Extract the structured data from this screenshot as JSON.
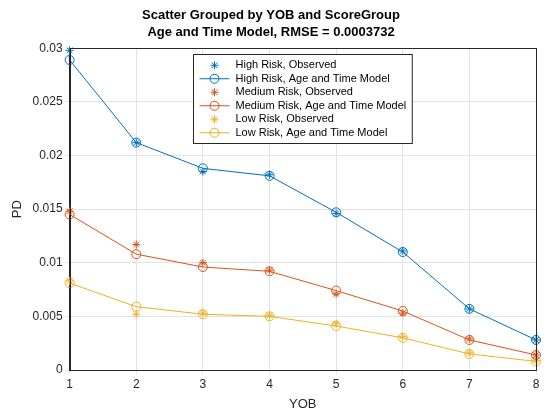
{
  "chart_data": {
    "type": "line",
    "title": "Scatter Grouped by YOB and ScoreGroup",
    "subtitle": "Age and Time Model, RMSE = 0.0003732",
    "x_label": "YOB",
    "y_label": "PD",
    "x": [
      1,
      2,
      3,
      4,
      5,
      6,
      7,
      8
    ],
    "xlim": [
      1,
      8
    ],
    "xticks": [
      1,
      2,
      3,
      4,
      5,
      6,
      7,
      8
    ],
    "ylim": [
      0,
      0.03
    ],
    "yticks": [
      0,
      0.005,
      0.01,
      0.015,
      0.02,
      0.025,
      0.03
    ],
    "grid": true,
    "legend": "top",
    "series": [
      {
        "name": "High Risk, Observed",
        "color": "#0072bd",
        "marker": "star",
        "line_style": "none",
        "values": [
          0.0298,
          0.0212,
          0.0185,
          0.0182,
          0.0146,
          0.0111,
          0.0057,
          0.0028
        ]
      },
      {
        "name": "High Risk, Age and Time Model",
        "color": "#0072bd",
        "marker": "circle",
        "line_style": "solid",
        "values": [
          0.0289,
          0.0212,
          0.0188,
          0.0181,
          0.0147,
          0.011,
          0.0057,
          0.0028
        ]
      },
      {
        "name": "Medium Risk, Observed",
        "color": "#d95319",
        "marker": "star",
        "line_style": "none",
        "values": [
          0.0148,
          0.0117,
          0.01,
          0.0093,
          0.0071,
          0.0053,
          0.0029,
          0.0014
        ]
      },
      {
        "name": "Medium Risk, Age and Time Model",
        "color": "#d95319",
        "marker": "circle",
        "line_style": "solid",
        "values": [
          0.0145,
          0.0108,
          0.0096,
          0.0092,
          0.0074,
          0.0055,
          0.0028,
          0.0014
        ]
      },
      {
        "name": "Low Risk, Observed",
        "color": "#edb120",
        "marker": "star",
        "line_style": "none",
        "values": [
          0.0083,
          0.0052,
          0.0053,
          0.0051,
          0.0043,
          0.0031,
          0.0016,
          0.0009
        ]
      },
      {
        "name": "Low Risk, Age and Time Model",
        "color": "#edb120",
        "marker": "circle",
        "line_style": "solid",
        "values": [
          0.0081,
          0.0059,
          0.0052,
          0.005,
          0.0041,
          0.003,
          0.0015,
          0.0008
        ]
      }
    ]
  }
}
